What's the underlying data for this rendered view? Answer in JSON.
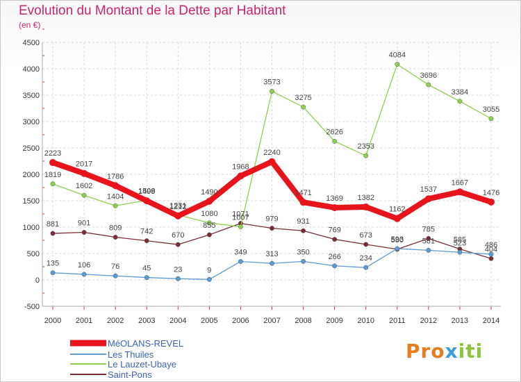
{
  "title": "Evolution du Montant de la Dette par Habitant",
  "unit": "(en €)",
  "logo": {
    "text": "Proxiti"
  },
  "chart_data": {
    "type": "line",
    "title": "Evolution du Montant de la Dette par Habitant",
    "ylabel": "(en €)",
    "xlabel": "",
    "ylim": [
      -500,
      4500
    ],
    "yticks": [
      -500,
      0,
      500,
      1000,
      1500,
      2000,
      2500,
      3000,
      3500,
      4000,
      4500
    ],
    "grid": true,
    "legend_position": "bottom-left",
    "x": [
      "2000",
      "2001",
      "2002",
      "2003",
      "2004",
      "2005",
      "2006",
      "2007",
      "2008",
      "2009",
      "2010",
      "2011",
      "2012",
      "2013",
      "2014"
    ],
    "series": [
      {
        "name": "MéOLANS-REVEL",
        "color": "#e8141c",
        "values": [
          2223,
          2017,
          1786,
          1499,
          1212,
          1490,
          1968,
          2240,
          1471,
          1369,
          1382,
          1162,
          1537,
          1667,
          1476
        ]
      },
      {
        "name": "Les Thuiles",
        "color": "#5b9bd5",
        "values": [
          135,
          106,
          76,
          45,
          23,
          9,
          349,
          313,
          350,
          266,
          234,
          593,
          561,
          523,
          486
        ]
      },
      {
        "name": "Le Lauzet-Ubaye",
        "color": "#8cd24b",
        "values": [
          1819,
          1602,
          1404,
          1508,
          1231,
          1080,
          1007,
          3573,
          3275,
          2626,
          2353,
          4084,
          3696,
          3384,
          3055
        ]
      },
      {
        "name": "Saint-Pons",
        "color": "#7b2c35",
        "values": [
          881,
          901,
          809,
          742,
          670,
          855,
          1071,
          979,
          931,
          769,
          673,
          580,
          785,
          585,
          404
        ]
      }
    ]
  }
}
